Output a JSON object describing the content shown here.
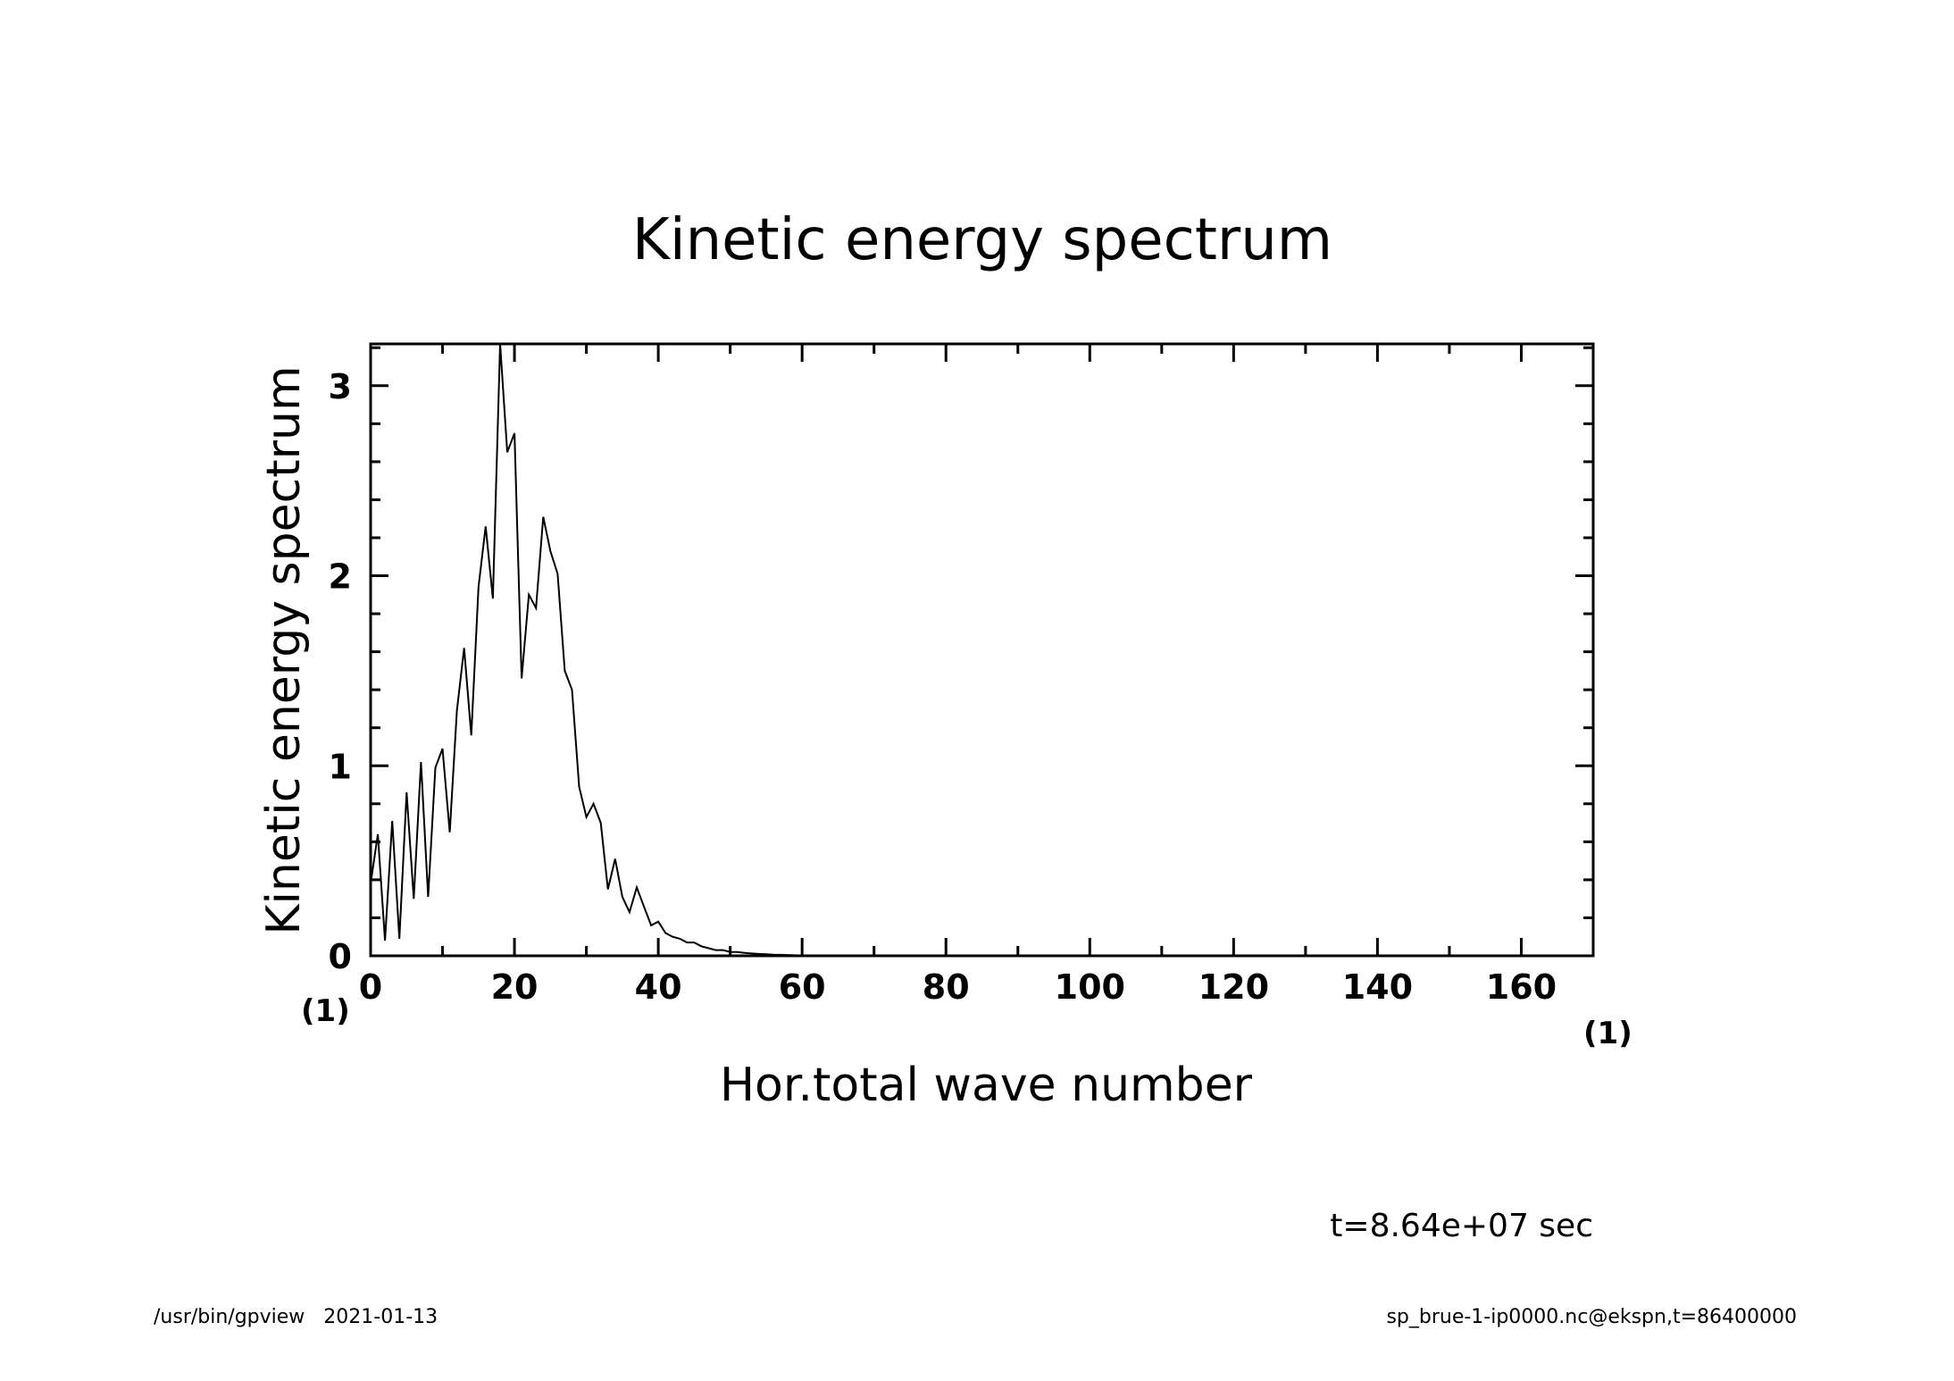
{
  "chart_data": {
    "type": "line",
    "title": "Kinetic energy spectrum",
    "xlabel": "Hor.total wave number",
    "ylabel": "Kinetic energy spectrum",
    "x_unit": "(1)",
    "y_unit": "(1)",
    "xlim": [
      0,
      170
    ],
    "ylim": [
      0,
      3.22
    ],
    "x_ticks": [
      "0",
      "20",
      "40",
      "60",
      "80",
      "100",
      "120",
      "140",
      "160"
    ],
    "y_ticks": [
      "0",
      "1",
      "2",
      "3"
    ],
    "grid": false,
    "series": [
      {
        "x": [
          0,
          1,
          2,
          3,
          4,
          5,
          6,
          7,
          8,
          9,
          10,
          11,
          12,
          13,
          14,
          15,
          16,
          17,
          18,
          19,
          20,
          21,
          22,
          23,
          24,
          25,
          26,
          27,
          28,
          29,
          30,
          31,
          32,
          33,
          34,
          35,
          36,
          37,
          38,
          39,
          40,
          41,
          42,
          43,
          44,
          45,
          46,
          47,
          48,
          49,
          50,
          51,
          52,
          53,
          54,
          55,
          56,
          57,
          58,
          59,
          60,
          62,
          64,
          66,
          68,
          70,
          75,
          80,
          90,
          100,
          110,
          120,
          130,
          140,
          150,
          160,
          170
        ],
        "values": [
          0.38,
          0.64,
          0.08,
          0.71,
          0.09,
          0.86,
          0.3,
          1.02,
          0.31,
          0.99,
          1.09,
          0.65,
          1.29,
          1.62,
          1.16,
          1.94,
          2.26,
          1.88,
          3.22,
          2.65,
          2.75,
          1.46,
          1.9,
          1.83,
          2.31,
          2.13,
          2.01,
          1.5,
          1.4,
          0.89,
          0.73,
          0.8,
          0.7,
          0.35,
          0.51,
          0.31,
          0.23,
          0.36,
          0.26,
          0.16,
          0.18,
          0.12,
          0.1,
          0.09,
          0.07,
          0.07,
          0.05,
          0.04,
          0.03,
          0.03,
          0.02,
          0.02,
          0.015,
          0.012,
          0.01,
          0.008,
          0.006,
          0.005,
          0.004,
          0.003,
          0.002,
          0.001,
          0.001,
          0.0,
          0.0,
          0.0,
          0.0,
          0.0,
          0.0,
          0.0,
          0.0,
          0.0,
          0.0,
          0.0,
          0.0,
          0.0,
          0.0
        ]
      }
    ]
  },
  "annotations": {
    "time": "t=8.64e+07 sec",
    "footer_left": "/usr/bin/gpview   2021-01-13",
    "footer_right": "sp_brue-1-ip0000.nc@ekspn,t=86400000"
  }
}
